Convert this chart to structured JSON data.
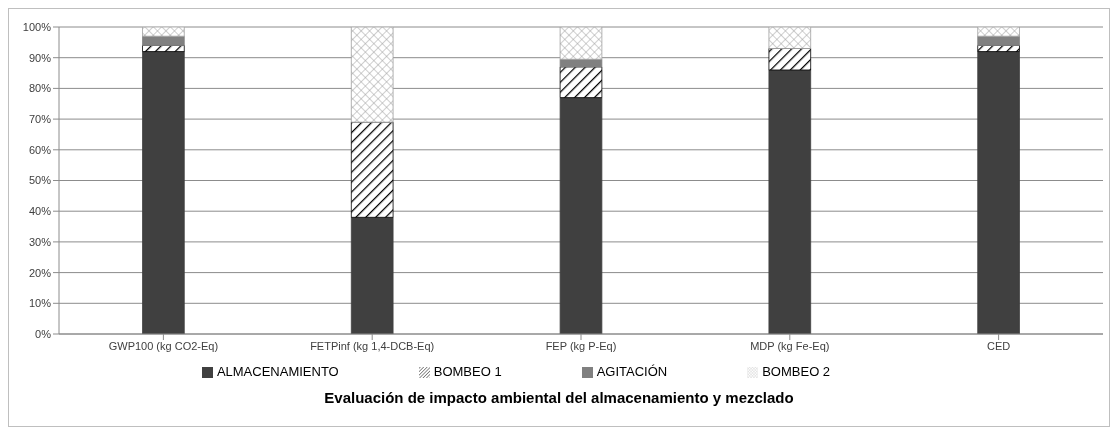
{
  "chart_data": {
    "type": "bar",
    "title": "Evaluación de impacto ambiental del almacenamiento y mezclado",
    "categories": [
      "GWP100 (kg CO2-Eq)",
      "FETPinf (kg 1,4-DCB-Eq)",
      "FEP (kg P-Eq)",
      "MDP (kg Fe-Eq)",
      "CED"
    ],
    "series": [
      {
        "name": "ALMACENAMIENTO",
        "color": "#404040",
        "values": [
          92,
          38,
          77,
          86,
          92
        ]
      },
      {
        "name": "BOMBEO 1",
        "color": "#000000",
        "values": [
          2,
          31,
          10,
          7,
          2
        ]
      },
      {
        "name": "AGITACIÓN",
        "color": "#808080",
        "values": [
          3,
          0,
          2.5,
          0,
          3
        ]
      },
      {
        "name": "BOMBEO 2",
        "color": "#a0a0a0",
        "values": [
          3,
          31,
          10.5,
          7,
          3
        ]
      }
    ],
    "stacked": true,
    "ylim": [
      0,
      100
    ],
    "yticks": [
      {
        "value": 0,
        "label": "0%"
      },
      {
        "value": 10,
        "label": "10%"
      },
      {
        "value": 20,
        "label": "20%"
      },
      {
        "value": 30,
        "label": "30%"
      },
      {
        "value": 40,
        "label": "40%"
      },
      {
        "value": 50,
        "label": "50%"
      },
      {
        "value": 60,
        "label": "60%"
      },
      {
        "value": 70,
        "label": "70%"
      },
      {
        "value": 80,
        "label": "80%"
      },
      {
        "value": 90,
        "label": "90%"
      },
      {
        "value": 100,
        "label": "100%"
      }
    ],
    "grid": "y",
    "legend": "bottom"
  }
}
